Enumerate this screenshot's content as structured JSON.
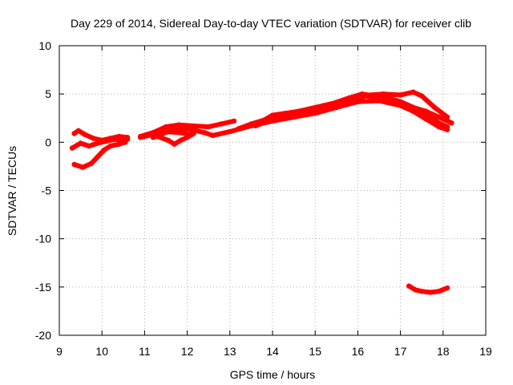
{
  "chart_data": {
    "type": "scatter",
    "title": "Day 229 of 2014, Sidereal Day-to-day VTEC variation (SDTVAR) for receiver clib",
    "xlabel": "GPS time / hours",
    "ylabel": "SDTVAR / TECUs",
    "xlim": [
      9,
      19
    ],
    "ylim": [
      -20,
      10
    ],
    "xticks": [
      9,
      10,
      11,
      12,
      13,
      14,
      15,
      16,
      17,
      18,
      19
    ],
    "yticks": [
      -20,
      -15,
      -10,
      -5,
      0,
      5,
      10
    ],
    "grid": true,
    "legend": "none",
    "color": "#ff0000",
    "series": [
      {
        "name": "track-1",
        "x": [
          9.35,
          9.45,
          9.6,
          9.8,
          10.0,
          10.2,
          10.4,
          10.6
        ],
        "y": [
          0.9,
          1.2,
          0.8,
          0.4,
          0.2,
          0.4,
          0.6,
          0.5
        ]
      },
      {
        "name": "track-2",
        "x": [
          9.3,
          9.5,
          9.7,
          9.9,
          10.1,
          10.3,
          10.5,
          10.6
        ],
        "y": [
          -0.6,
          -0.1,
          -0.4,
          -0.1,
          0.1,
          0.3,
          0.2,
          0.3
        ]
      },
      {
        "name": "track-3",
        "x": [
          9.35,
          9.55,
          9.75,
          9.9,
          10.05,
          10.2,
          10.4,
          10.55
        ],
        "y": [
          -2.3,
          -2.6,
          -2.2,
          -1.5,
          -0.8,
          -0.4,
          -0.2,
          0.0
        ]
      },
      {
        "name": "track-4",
        "x": [
          10.9,
          11.2,
          11.5,
          11.8,
          12.1,
          12.5,
          12.8,
          13.1
        ],
        "y": [
          0.6,
          1.0,
          1.6,
          1.8,
          1.7,
          1.6,
          1.9,
          2.2
        ]
      },
      {
        "name": "track-5",
        "x": [
          10.9,
          11.2,
          11.5,
          11.8,
          12.1
        ],
        "y": [
          0.5,
          0.8,
          1.1,
          1.0,
          0.8
        ]
      },
      {
        "name": "track-6",
        "x": [
          11.3,
          11.55,
          11.7,
          11.85,
          12.0,
          12.15
        ],
        "y": [
          0.6,
          0.2,
          -0.2,
          0.2,
          0.5,
          0.9
        ]
      },
      {
        "name": "track-7",
        "x": [
          11.2,
          11.6,
          12.0,
          12.4,
          12.6,
          13.0,
          13.5,
          14.0,
          14.5,
          15.0,
          15.5,
          16.0,
          16.2,
          16.5,
          16.8,
          17.0,
          17.3,
          17.6,
          17.9,
          18.2
        ],
        "y": [
          0.5,
          1.2,
          1.4,
          1.0,
          0.7,
          1.1,
          1.7,
          2.2,
          2.7,
          3.3,
          3.9,
          4.6,
          4.8,
          4.6,
          4.3,
          4.2,
          3.6,
          3.2,
          2.6,
          2.0
        ]
      },
      {
        "name": "track-8",
        "x": [
          13.2,
          13.5,
          13.8,
          14.0,
          14.3,
          14.6,
          15.0,
          15.4,
          15.8,
          16.1,
          16.4,
          16.7,
          17.0,
          17.3,
          17.6,
          17.9,
          18.1
        ],
        "y": [
          1.4,
          1.9,
          2.3,
          2.8,
          3.0,
          3.2,
          3.6,
          4.0,
          4.6,
          5.0,
          4.8,
          4.6,
          4.2,
          3.6,
          2.9,
          2.0,
          1.6
        ]
      },
      {
        "name": "track-9",
        "x": [
          13.6,
          14.0,
          14.4,
          14.8,
          15.2,
          15.6,
          16.0,
          16.3,
          16.6,
          17.0,
          17.3,
          17.5,
          17.8,
          18.1
        ],
        "y": [
          1.7,
          2.4,
          2.9,
          3.3,
          3.8,
          4.2,
          4.6,
          4.9,
          5.0,
          4.9,
          5.2,
          4.8,
          3.6,
          2.6
        ]
      },
      {
        "name": "track-10",
        "x": [
          14.0,
          14.5,
          15.0,
          15.5,
          16.0,
          16.5,
          17.0,
          17.3,
          17.6,
          17.9,
          18.1
        ],
        "y": [
          2.2,
          2.6,
          3.0,
          3.6,
          4.2,
          4.3,
          3.8,
          3.2,
          2.4,
          1.6,
          1.3
        ]
      },
      {
        "name": "track-11",
        "x": [
          17.2,
          17.35,
          17.5,
          17.7,
          17.9,
          18.1
        ],
        "y": [
          -14.9,
          -15.3,
          -15.45,
          -15.55,
          -15.45,
          -15.1
        ]
      }
    ]
  }
}
